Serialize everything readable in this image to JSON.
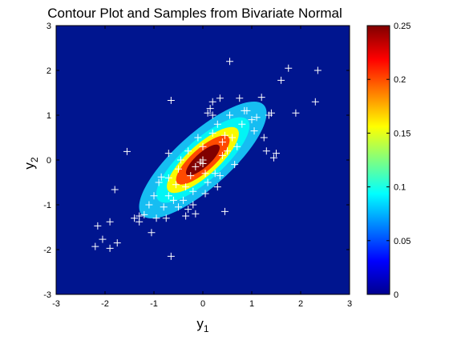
{
  "chart_data": {
    "type": "contour",
    "title": "Contour Plot and Samples from Bivariate Normal",
    "xlabel": "y",
    "xlabel_sub": "1",
    "ylabel": "y",
    "ylabel_sub": "2",
    "xlim": [
      -3,
      3
    ],
    "ylim": [
      -3,
      3
    ],
    "xticks": [
      "-3",
      "-2",
      "-1",
      "0",
      "1",
      "2",
      "3"
    ],
    "yticks": [
      "-3",
      "-2",
      "-1",
      "0",
      "1",
      "2",
      "3"
    ],
    "grid": false,
    "distribution": {
      "mean": [
        0,
        0
      ],
      "sigma1": 1,
      "sigma2": 1,
      "rho": 0.8
    },
    "contour_levels": [
      0.025,
      0.075,
      0.125,
      0.175,
      0.225
    ],
    "contour_colors": [
      "#00158f",
      "#16bdf2",
      "#02f5f5",
      "#fafa00",
      "#ff4a00",
      "#810000"
    ],
    "colorbar": {
      "ticks": [
        "0",
        "0.05",
        "0.1",
        "0.15",
        "0.2",
        "0.25"
      ],
      "range": [
        0,
        0.25
      ]
    },
    "samples": [
      [
        -2.2,
        -1.93
      ],
      [
        -2.15,
        -1.47
      ],
      [
        -2.05,
        -1.77
      ],
      [
        -1.9,
        -1.97
      ],
      [
        -1.9,
        -1.38
      ],
      [
        -1.75,
        -1.85
      ],
      [
        -1.8,
        -0.66
      ],
      [
        -1.55,
        0.19
      ],
      [
        -1.4,
        -1.3
      ],
      [
        -1.3,
        -1.38
      ],
      [
        -1.3,
        -1.25
      ],
      [
        -1.2,
        -1.22
      ],
      [
        -1.1,
        -1.0
      ],
      [
        -1.05,
        -1.62
      ],
      [
        -1.0,
        -0.8
      ],
      [
        -0.95,
        -1.3
      ],
      [
        -0.9,
        -0.5
      ],
      [
        -0.85,
        -0.38
      ],
      [
        -0.8,
        -1.05
      ],
      [
        -0.75,
        -1.3
      ],
      [
        -0.7,
        -0.8
      ],
      [
        -0.7,
        -0.4
      ],
      [
        -0.7,
        0.15
      ],
      [
        -0.65,
        -2.15
      ],
      [
        -0.65,
        1.33
      ],
      [
        -0.6,
        -0.9
      ],
      [
        -0.55,
        -0.55
      ],
      [
        -0.5,
        -0.2
      ],
      [
        -0.5,
        -1.05
      ],
      [
        -0.45,
        0.0
      ],
      [
        -0.4,
        -0.9
      ],
      [
        -0.35,
        -0.6
      ],
      [
        -0.35,
        -1.25
      ],
      [
        -0.3,
        -1.1
      ],
      [
        -0.3,
        0.2
      ],
      [
        -0.25,
        -0.35
      ],
      [
        -0.2,
        -1.0
      ],
      [
        -0.2,
        -0.7
      ],
      [
        -0.15,
        -1.2
      ],
      [
        -0.15,
        -0.15
      ],
      [
        -0.1,
        0.5
      ],
      [
        -0.05,
        -0.05
      ],
      [
        0.0,
        0.0
      ],
      [
        0.0,
        -0.08
      ],
      [
        0.0,
        0.3
      ],
      [
        0.05,
        -0.3
      ],
      [
        0.05,
        -0.75
      ],
      [
        0.1,
        -0.5
      ],
      [
        0.1,
        1.05
      ],
      [
        0.15,
        1.15
      ],
      [
        0.2,
        0.6
      ],
      [
        0.2,
        1.3
      ],
      [
        0.2,
        1.0
      ],
      [
        0.25,
        -0.3
      ],
      [
        0.3,
        -0.6
      ],
      [
        0.3,
        0.8
      ],
      [
        0.35,
        -0.35
      ],
      [
        0.35,
        1.38
      ],
      [
        0.4,
        0.1
      ],
      [
        0.4,
        0.4
      ],
      [
        0.45,
        0.55
      ],
      [
        0.45,
        -1.15
      ],
      [
        0.5,
        0.2
      ],
      [
        0.55,
        2.2
      ],
      [
        0.55,
        1.0
      ],
      [
        0.6,
        0.5
      ],
      [
        0.65,
        -0.1
      ],
      [
        0.7,
        0.3
      ],
      [
        0.75,
        1.38
      ],
      [
        0.8,
        0.8
      ],
      [
        0.85,
        1.1
      ],
      [
        0.9,
        1.1
      ],
      [
        1.0,
        0.9
      ],
      [
        1.05,
        0.65
      ],
      [
        1.1,
        0.95
      ],
      [
        1.2,
        1.4
      ],
      [
        1.25,
        0.5
      ],
      [
        1.3,
        0.2
      ],
      [
        1.35,
        1.0
      ],
      [
        1.4,
        1.05
      ],
      [
        1.45,
        0.05
      ],
      [
        1.5,
        0.15
      ],
      [
        1.6,
        1.78
      ],
      [
        1.75,
        2.05
      ],
      [
        1.9,
        1.05
      ],
      [
        2.3,
        1.3
      ],
      [
        2.35,
        2.0
      ]
    ]
  }
}
